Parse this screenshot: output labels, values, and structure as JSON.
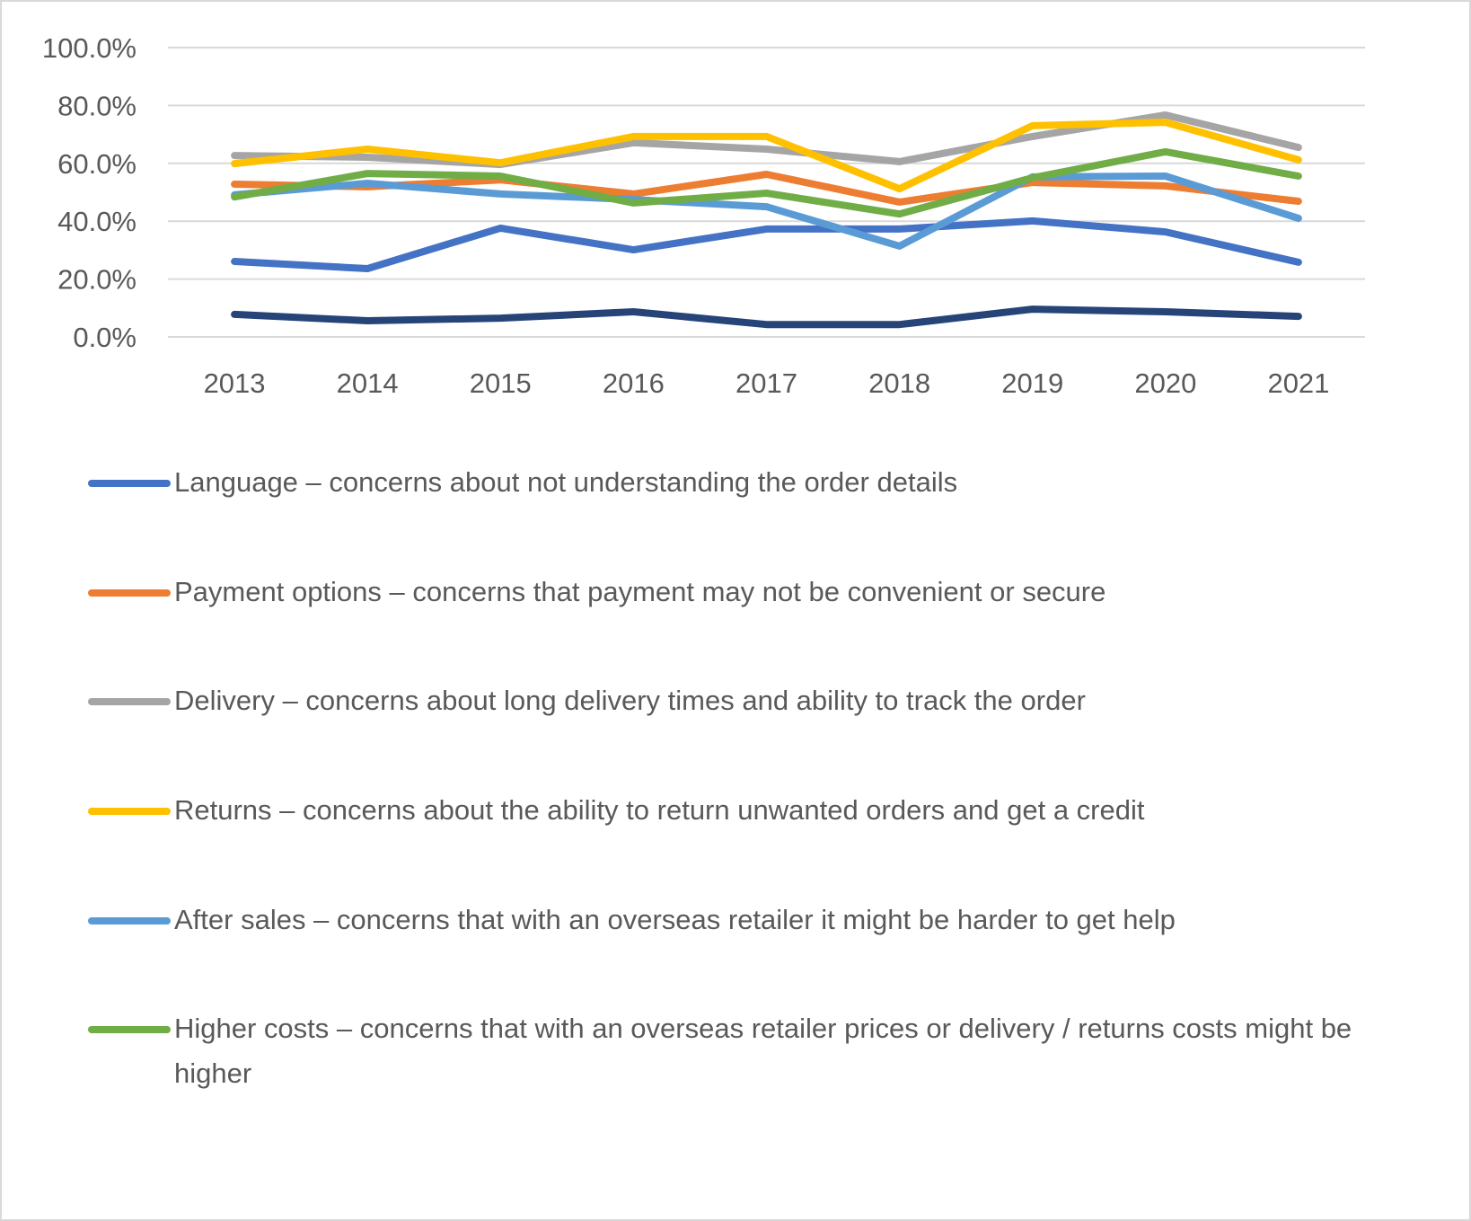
{
  "chart_data": {
    "type": "line",
    "title": "",
    "xlabel": "",
    "ylabel": "",
    "x": [
      "2013",
      "2014",
      "2015",
      "2016",
      "2017",
      "2018",
      "2019",
      "2020",
      "2021"
    ],
    "y_ticks": [
      "0.0%",
      "20.0%",
      "40.0%",
      "60.0%",
      "80.0%",
      "100.0%"
    ],
    "ylim": [
      0,
      100
    ],
    "y_unit": "percent",
    "grid": true,
    "legend_position": "bottom",
    "series": [
      {
        "name": "Language – concerns about not understanding the order details",
        "color": "#4472C4",
        "in_legend": true,
        "values": [
          26.1,
          23.6,
          37.6,
          30.1,
          37.3,
          37.3,
          40.1,
          36.3,
          25.8
        ]
      },
      {
        "name": "Payment options – concerns that payment may not be convenient or secure",
        "color": "#ED7D31",
        "in_legend": true,
        "values": [
          52.8,
          51.9,
          54.3,
          49.4,
          56.2,
          46.6,
          53.4,
          52.2,
          46.9
        ]
      },
      {
        "name": "Delivery – concerns about long delivery times and ability to track the order",
        "color": "#A5A5A5",
        "in_legend": true,
        "values": [
          62.7,
          62.1,
          59.6,
          67.1,
          64.9,
          60.6,
          69.3,
          76.7,
          65.5
        ]
      },
      {
        "name": "Returns – concerns about the ability to return unwanted orders and get a credit",
        "color": "#FFC000",
        "in_legend": true,
        "values": [
          59.9,
          64.9,
          60.2,
          69.3,
          69.3,
          51.2,
          73.0,
          74.2,
          61.2
        ]
      },
      {
        "name": "After sales – concerns that with an overseas retailer it might be harder to get help",
        "color": "#5B9BD5",
        "in_legend": true,
        "values": [
          49.1,
          53.1,
          49.4,
          47.5,
          45.0,
          31.4,
          55.3,
          55.6,
          41.0
        ]
      },
      {
        "name": "Higher costs – concerns that with an overseas retailer prices or delivery / returns costs might be higher",
        "color": "#70AD47",
        "in_legend": true,
        "values": [
          48.4,
          56.5,
          55.6,
          46.3,
          49.7,
          42.5,
          55.0,
          64.0,
          55.6
        ]
      },
      {
        "name": "",
        "color": "#264478",
        "in_legend": false,
        "values": [
          7.8,
          5.6,
          6.5,
          8.7,
          4.3,
          4.3,
          9.6,
          8.7,
          7.1
        ]
      }
    ]
  },
  "legend": {
    "items": [
      {
        "label": "Language – concerns about not understanding the order details",
        "color": "#4472C4"
      },
      {
        "label": "Payment options – concerns that payment may not be convenient or secure",
        "color": "#ED7D31"
      },
      {
        "label": "Delivery – concerns about long delivery times and ability to track the order",
        "color": "#A5A5A5"
      },
      {
        "label": "Returns – concerns about the ability to return unwanted orders and get a credit",
        "color": "#FFC000"
      },
      {
        "label": "After sales – concerns that with an overseas retailer it might be harder to get help",
        "color": "#5B9BD5"
      },
      {
        "label": "Higher costs – concerns that with an overseas retailer prices or delivery / returns costs might be higher",
        "color": "#70AD47"
      }
    ]
  }
}
